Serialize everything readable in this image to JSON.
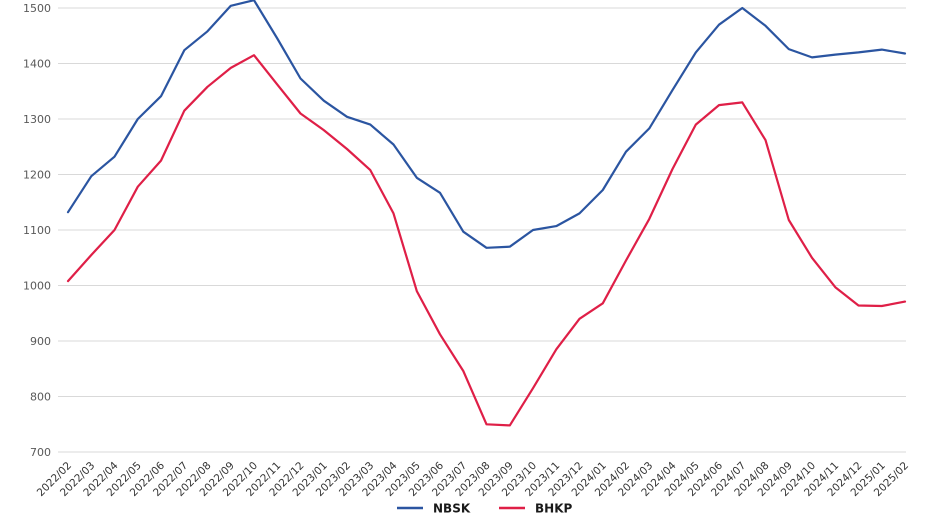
{
  "chart_data": {
    "type": "line",
    "title": "",
    "xlabel": "",
    "ylabel": "",
    "categories": [
      "2022/02",
      "2022/03",
      "2022/04",
      "2022/05",
      "2022/06",
      "2022/07",
      "2022/08",
      "2022/09",
      "2022/10",
      "2022/11",
      "2022/12",
      "2023/01",
      "2023/02",
      "2023/03",
      "2023/04",
      "2023/05",
      "2023/06",
      "2023/07",
      "2023/08",
      "2023/09",
      "2023/10",
      "2023/11",
      "2023/12",
      "2024/01",
      "2024/02",
      "2024/03",
      "2024/04",
      "2024/05",
      "2024/06",
      "2024/07",
      "2024/08",
      "2024/09",
      "2024/10",
      "2024/11",
      "2024/12",
      "2025/01",
      "2025/02"
    ],
    "series": [
      {
        "name": "NBSK",
        "color": "#2b55a1",
        "values": [
          1132,
          1197,
          1232,
          1300,
          1341,
          1424,
          1458,
          1504,
          1514,
          1445,
          1373,
          1333,
          1304,
          1290,
          1254,
          1194,
          1167,
          1097,
          1068,
          1070,
          1100,
          1107,
          1130,
          1172,
          1241,
          1283,
          1352,
          1420,
          1470,
          1500,
          1468,
          1426,
          1411,
          1416,
          1420,
          1425,
          1418
        ]
      },
      {
        "name": "BHKP",
        "color": "#df1f47",
        "values": [
          1008,
          1055,
          1100,
          1178,
          1225,
          1315,
          1358,
          1392,
          1415,
          1362,
          1310,
          1280,
          1246,
          1208,
          1130,
          990,
          912,
          846,
          750,
          748,
          815,
          885,
          940,
          968,
          1045,
          1120,
          1210,
          1290,
          1325,
          1330,
          1262,
          1118,
          1050,
          997,
          964,
          963,
          971
        ]
      }
    ],
    "ylim": [
      700,
      1515
    ],
    "yticks": [
      700,
      800,
      900,
      1000,
      1100,
      1200,
      1300,
      1400,
      1500
    ],
    "grid": true,
    "gridline_color": "#d9d9d9",
    "background_color": "#ffffff",
    "legend_position": "bottom"
  },
  "legend": {
    "items": [
      {
        "label": "NBSK",
        "color": "#2b55a1"
      },
      {
        "label": "BHKP",
        "color": "#df1f47"
      }
    ]
  }
}
